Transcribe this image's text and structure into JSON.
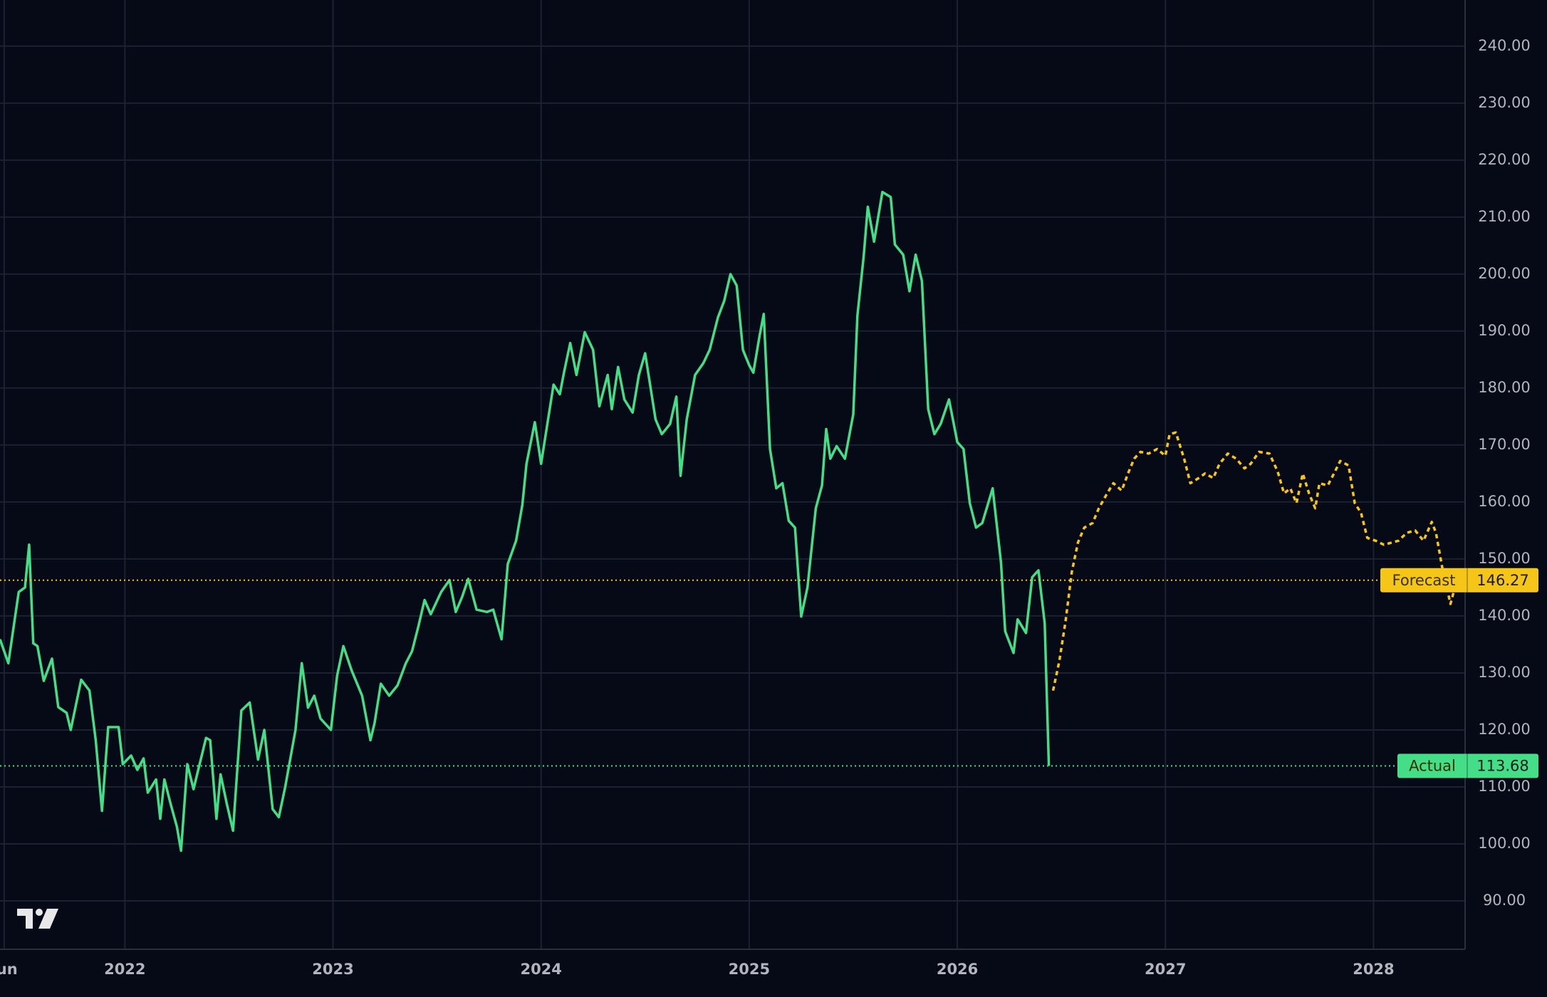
{
  "chart_data": {
    "type": "line",
    "xlim": [
      2021.4,
      2028.44
    ],
    "ylim": [
      81.5,
      248.1
    ],
    "xticks": [
      {
        "value": 2021.42,
        "label": "Jun"
      },
      2022,
      2023,
      2024,
      2025,
      2026,
      2027,
      2028
    ],
    "yticks": [
      {
        "value": 90,
        "label": "90.00"
      },
      {
        "value": 100,
        "label": "100.00"
      },
      {
        "value": 110,
        "label": "110.00"
      },
      {
        "value": 120,
        "label": "120.00"
      },
      {
        "value": 130,
        "label": "130.00"
      },
      {
        "value": 140,
        "label": "140.00"
      },
      {
        "value": 150,
        "label": "150.00"
      },
      {
        "value": 160,
        "label": "160.00"
      },
      {
        "value": 170,
        "label": "170.00"
      },
      {
        "value": 180,
        "label": "180.00"
      },
      {
        "value": 190,
        "label": "190.00"
      },
      {
        "value": 200,
        "label": "200.00"
      },
      {
        "value": 210,
        "label": "210.00"
      },
      {
        "value": 220,
        "label": "220.00"
      },
      {
        "value": 230,
        "label": "230.00"
      },
      {
        "value": 240,
        "label": "240.00"
      }
    ],
    "grid": true,
    "series": [
      {
        "name": "Actual",
        "color": "#45de88",
        "dashed": false,
        "x": [
          2021.4,
          2021.44,
          2021.49,
          2021.52,
          2021.54,
          2021.56,
          2021.58,
          2021.61,
          2021.65,
          2021.68,
          2021.72,
          2021.74,
          2021.79,
          2021.83,
          2021.86,
          2021.89,
          2021.92,
          2021.97,
          2021.99,
          2022.03,
          2022.06,
          2022.09,
          2022.11,
          2022.15,
          2022.17,
          2022.19,
          2022.22,
          2022.25,
          2022.27,
          2022.3,
          2022.33,
          2022.39,
          2022.41,
          2022.44,
          2022.46,
          2022.49,
          2022.52,
          2022.56,
          2022.6,
          2022.64,
          2022.67,
          2022.71,
          2022.74,
          2022.77,
          2022.82,
          2022.85,
          2022.88,
          2022.91,
          2022.94,
          2022.99,
          2023.02,
          2023.05,
          2023.09,
          2023.14,
          2023.18,
          2023.2,
          2023.23,
          2023.27,
          2023.31,
          2023.35,
          2023.38,
          2023.41,
          2023.44,
          2023.47,
          2023.52,
          2023.56,
          2023.59,
          2023.62,
          2023.65,
          2023.69,
          2023.74,
          2023.77,
          2023.81,
          2023.84,
          2023.88,
          2023.91,
          2023.93,
          2023.97,
          2024.0,
          2024.03,
          2024.06,
          2024.09,
          2024.11,
          2024.14,
          2024.17,
          2024.21,
          2024.25,
          2024.28,
          2024.32,
          2024.34,
          2024.37,
          2024.4,
          2024.44,
          2024.47,
          2024.5,
          2024.55,
          2024.58,
          2024.62,
          2024.65,
          2024.67,
          2024.7,
          2024.74,
          2024.78,
          2024.81,
          2024.85,
          2024.88,
          2024.91,
          2024.94,
          2024.97,
          2025.0,
          2025.02,
          2025.05,
          2025.07,
          2025.1,
          2025.13,
          2025.16,
          2025.19,
          2025.22,
          2025.25,
          2025.28,
          2025.32,
          2025.35,
          2025.37,
          2025.39,
          2025.42,
          2025.46,
          2025.5,
          2025.52,
          2025.55,
          2025.57,
          2025.6,
          2025.64,
          2025.68,
          2025.7,
          2025.74,
          2025.77,
          2025.8,
          2025.83,
          2025.86,
          2025.89,
          2025.92,
          2025.96,
          2026.0,
          2026.03,
          2026.06,
          2026.09,
          2026.12,
          2026.17,
          2026.21,
          2026.23,
          2026.27,
          2026.29,
          2026.33,
          2026.36,
          2026.39,
          2026.42,
          2026.44
        ],
        "values": [
          135.9,
          131.7,
          144.2,
          145.0,
          152.5,
          135.2,
          134.7,
          128.6,
          132.5,
          124.0,
          123.0,
          120.0,
          128.8,
          126.9,
          118.2,
          105.8,
          120.5,
          120.5,
          114.0,
          115.5,
          113.0,
          115.0,
          109.0,
          111.3,
          104.4,
          111.3,
          107.0,
          103.0,
          98.8,
          114.0,
          109.6,
          118.6,
          118.2,
          104.4,
          112.2,
          107.0,
          102.3,
          123.4,
          124.8,
          114.8,
          120.0,
          106.1,
          104.7,
          109.9,
          120.0,
          131.7,
          123.9,
          126.0,
          122.0,
          120.0,
          129.5,
          134.7,
          130.4,
          126.0,
          118.2,
          121.2,
          128.1,
          126.0,
          127.8,
          131.7,
          133.8,
          138.1,
          142.8,
          140.3,
          144.2,
          146.3,
          140.7,
          143.3,
          146.5,
          141.1,
          140.7,
          141.1,
          135.9,
          149.1,
          153.2,
          159.5,
          166.7,
          174.0,
          166.7,
          173.7,
          180.6,
          178.9,
          182.7,
          187.9,
          182.3,
          189.8,
          186.7,
          176.8,
          182.3,
          176.3,
          183.7,
          178.0,
          175.7,
          182.3,
          186.1,
          174.5,
          171.9,
          173.7,
          178.5,
          164.6,
          174.5,
          182.3,
          184.4,
          186.7,
          192.4,
          195.3,
          200.0,
          198.0,
          186.7,
          184.0,
          182.7,
          189.2,
          193.0,
          169.3,
          162.4,
          163.3,
          156.7,
          155.5,
          139.9,
          145.0,
          158.9,
          162.9,
          172.8,
          167.6,
          169.8,
          167.6,
          175.4,
          192.7,
          203.1,
          211.8,
          205.7,
          214.4,
          213.5,
          205.2,
          203.4,
          197.0,
          203.4,
          198.8,
          176.3,
          171.9,
          173.7,
          178.0,
          170.5,
          169.3,
          159.8,
          155.5,
          156.3,
          162.4,
          149.4,
          137.3,
          133.5,
          139.4,
          137.0,
          146.8,
          148.0,
          138.7,
          113.68
        ]
      },
      {
        "name": "Forecast",
        "color": "#f5c518",
        "dashed": true,
        "x": [
          2026.46,
          2026.49,
          2026.52,
          2026.55,
          2026.58,
          2026.61,
          2026.65,
          2026.68,
          2026.72,
          2026.75,
          2026.79,
          2026.82,
          2026.85,
          2026.88,
          2026.92,
          2026.96,
          2027.0,
          2027.02,
          2027.05,
          2027.09,
          2027.12,
          2027.16,
          2027.19,
          2027.23,
          2027.26,
          2027.3,
          2027.34,
          2027.38,
          2027.41,
          2027.45,
          2027.5,
          2027.54,
          2027.57,
          2027.6,
          2027.63,
          2027.66,
          2027.69,
          2027.72,
          2027.74,
          2027.78,
          2027.81,
          2027.84,
          2027.88,
          2027.91,
          2027.94,
          2027.97,
          2028.01,
          2028.05,
          2028.09,
          2028.12,
          2028.16,
          2028.2,
          2028.24,
          2028.28,
          2028.3,
          2028.33,
          2028.37,
          2028.4
        ],
        "values": [
          126.9,
          132.0,
          139.0,
          147.7,
          152.9,
          155.5,
          156.3,
          158.9,
          161.5,
          163.3,
          162.0,
          165.0,
          167.6,
          168.8,
          168.5,
          169.3,
          168.1,
          171.9,
          172.2,
          167.6,
          163.3,
          164.2,
          165.0,
          164.2,
          166.7,
          168.5,
          167.6,
          165.9,
          166.7,
          168.8,
          168.5,
          165.3,
          161.5,
          162.4,
          159.8,
          165.0,
          161.5,
          158.9,
          163.3,
          162.9,
          165.0,
          167.2,
          166.4,
          159.8,
          158.1,
          153.7,
          153.2,
          152.5,
          152.9,
          153.2,
          154.6,
          155.0,
          153.2,
          156.5,
          154.6,
          148.5,
          142.1,
          146.27
        ]
      }
    ]
  }
}
